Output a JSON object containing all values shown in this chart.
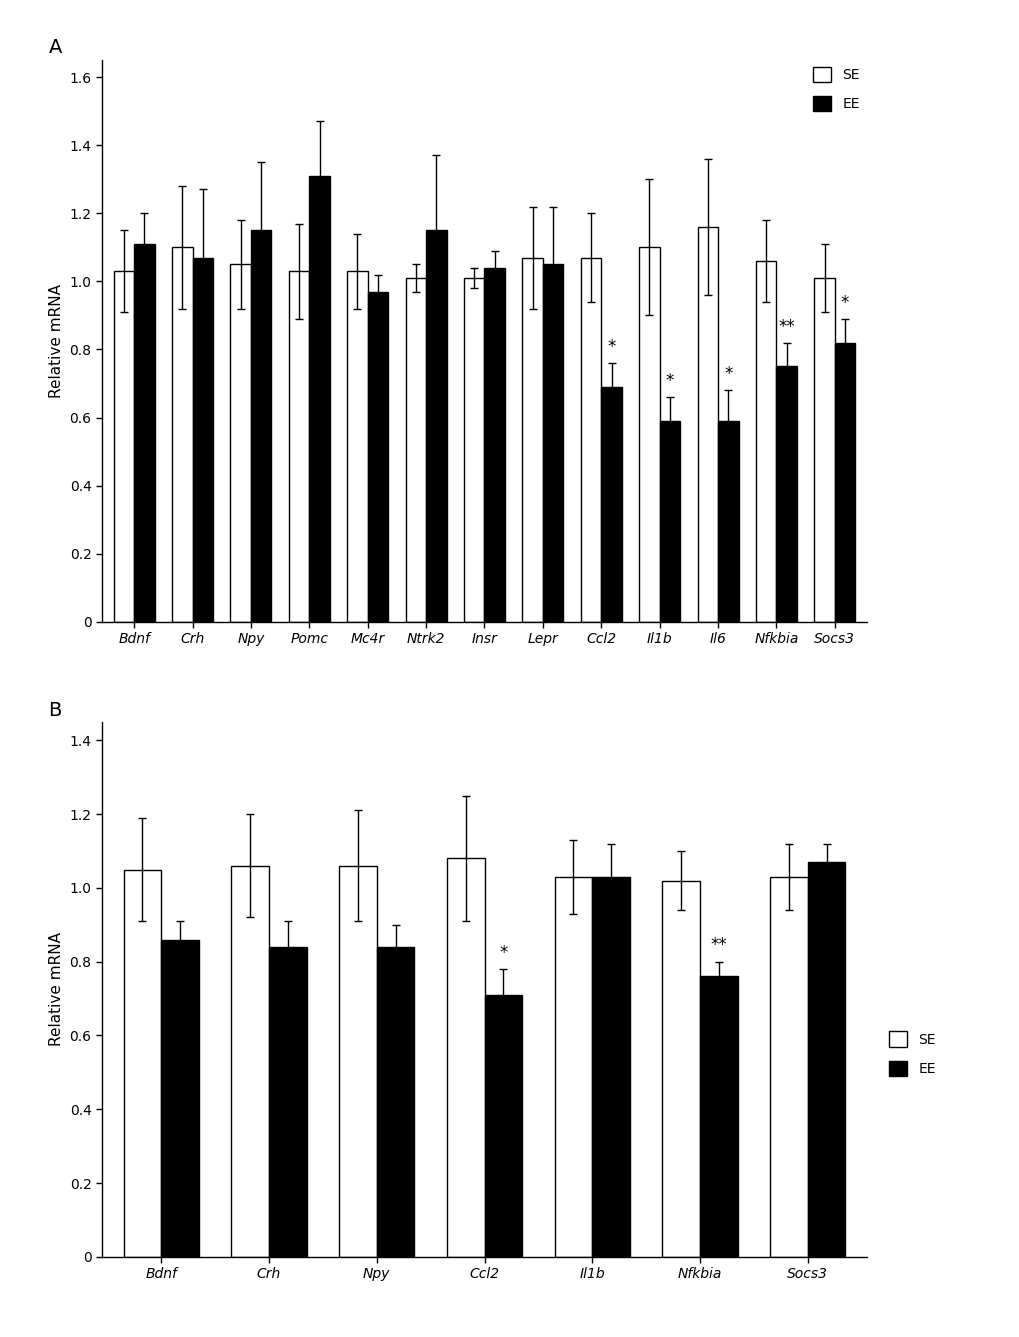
{
  "panel_A": {
    "title": "A",
    "categories": [
      "Bdnf",
      "Crh",
      "Npy",
      "Pomc",
      "Mc4r",
      "Ntrk2",
      "Insr",
      "Lepr",
      "Ccl2",
      "Il1b",
      "Il6",
      "Nfkbia",
      "Socs3"
    ],
    "SE_values": [
      1.03,
      1.1,
      1.05,
      1.03,
      1.03,
      1.01,
      1.01,
      1.07,
      1.07,
      1.1,
      1.16,
      1.06,
      1.01
    ],
    "EE_values": [
      1.11,
      1.07,
      1.15,
      1.31,
      0.97,
      1.15,
      1.04,
      1.05,
      0.69,
      0.59,
      0.59,
      0.75,
      0.82
    ],
    "SE_errors": [
      0.12,
      0.18,
      0.13,
      0.14,
      0.11,
      0.04,
      0.03,
      0.15,
      0.13,
      0.2,
      0.2,
      0.12,
      0.1
    ],
    "EE_errors": [
      0.09,
      0.2,
      0.2,
      0.16,
      0.05,
      0.22,
      0.05,
      0.17,
      0.07,
      0.07,
      0.09,
      0.07,
      0.07
    ],
    "significance": [
      "",
      "",
      "",
      "",
      "",
      "",
      "",
      "",
      "*",
      "*",
      "*",
      "**",
      "*"
    ],
    "ylabel": "Relative mRNA",
    "ylim": [
      0,
      1.65
    ],
    "yticks": [
      0,
      0.2,
      0.4,
      0.6,
      0.8,
      1.0,
      1.2,
      1.4,
      1.6
    ]
  },
  "panel_B": {
    "title": "B",
    "categories": [
      "Bdnf",
      "Crh",
      "Npy",
      "Ccl2",
      "Il1b",
      "Nfkbia",
      "Socs3"
    ],
    "SE_values": [
      1.05,
      1.06,
      1.06,
      1.08,
      1.03,
      1.02,
      1.03
    ],
    "EE_values": [
      0.86,
      0.84,
      0.84,
      0.71,
      1.03,
      0.76,
      1.07
    ],
    "SE_errors": [
      0.14,
      0.14,
      0.15,
      0.17,
      0.1,
      0.08,
      0.09
    ],
    "EE_errors": [
      0.05,
      0.07,
      0.06,
      0.07,
      0.09,
      0.04,
      0.05
    ],
    "significance": [
      "",
      "",
      "",
      "*",
      "",
      "**",
      ""
    ],
    "ylabel": "Relative mRNA",
    "ylim": [
      0,
      1.45
    ],
    "yticks": [
      0,
      0.2,
      0.4,
      0.6,
      0.8,
      1.0,
      1.2,
      1.4
    ]
  },
  "bar_width": 0.35,
  "SE_color": "white",
  "EE_color": "black",
  "edge_color": "black",
  "font_size_ticks": 10,
  "font_size_label": 11,
  "font_size_panel": 14,
  "font_size_legend": 10,
  "font_size_star": 12
}
